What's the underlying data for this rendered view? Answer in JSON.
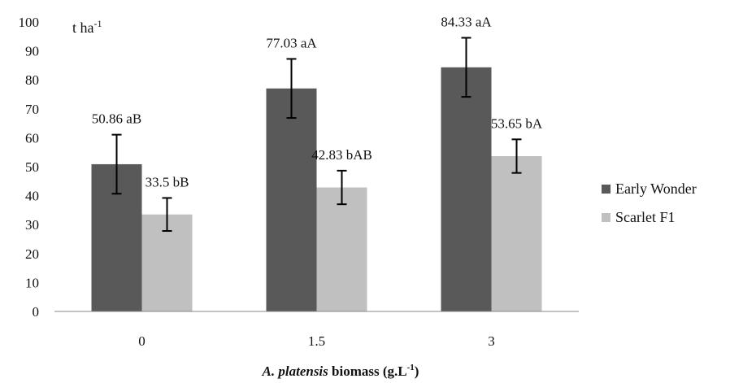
{
  "chart_data": {
    "type": "bar",
    "categories": [
      "0",
      "1.5",
      "3"
    ],
    "series": [
      {
        "name": "Early Wonder",
        "color": "#595959",
        "values": [
          50.86,
          77.03,
          84.33
        ],
        "errors": [
          10.2,
          10.2,
          10.2
        ],
        "labels": [
          "50.86 aB",
          "77.03 aA",
          "84.33 aA"
        ]
      },
      {
        "name": "Scarlet F1",
        "color": "#c0c0c0",
        "values": [
          33.5,
          42.83,
          53.65
        ],
        "errors": [
          5.7,
          5.8,
          5.8
        ],
        "labels": [
          "33.5 bB",
          "42.83 bAB",
          "53.65 bA"
        ]
      }
    ],
    "yticks": [
      "0",
      "10",
      "20",
      "30",
      "40",
      "50",
      "60",
      "70",
      "80",
      "90",
      "100"
    ],
    "ylim": [
      0,
      100
    ],
    "unit": {
      "main": "t ha",
      "sup": "-1"
    },
    "xlabel": {
      "italic": "A. platensis",
      "rest": " biomass (g.L",
      "sup": "-1",
      "close": ")"
    },
    "legend_position": "right",
    "grid": false
  }
}
